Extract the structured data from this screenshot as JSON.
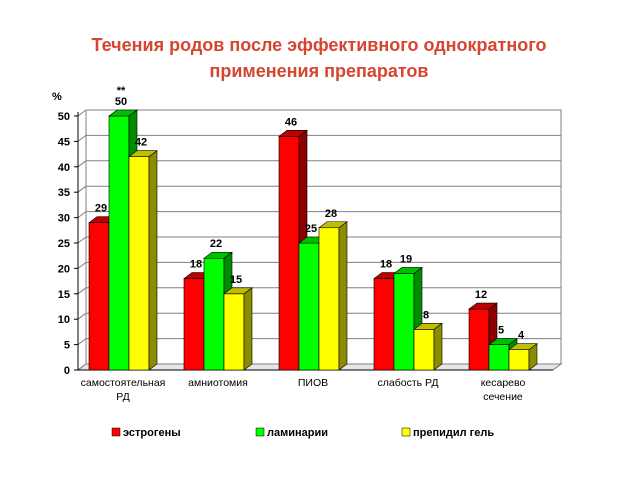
{
  "chart_data": {
    "type": "bar",
    "title_line1": "Течения родов после эффективного однократного",
    "title_line2": "применения препаратов",
    "ylabel": "%",
    "ylim": [
      0,
      50
    ],
    "yticks": [
      "0",
      "5",
      "10",
      "15",
      "20",
      "25",
      "30",
      "35",
      "40",
      "45",
      "50"
    ],
    "grid": true,
    "legend_position": "bottom",
    "categories": [
      [
        "самостоятельная",
        "РД"
      ],
      [
        "амниотомия"
      ],
      [
        "ПИОВ"
      ],
      [
        "слабость РД"
      ],
      [
        "кесарево",
        "сечение"
      ]
    ],
    "series": [
      {
        "name": "эстрогены",
        "color": "#ff0000",
        "values": [
          29,
          18,
          46,
          18,
          12
        ]
      },
      {
        "name": "ламинарии",
        "color": "#00ff00",
        "values": [
          50,
          22,
          25,
          19,
          5
        ]
      },
      {
        "name": "препидил гель",
        "color": "#ffff00",
        "values": [
          42,
          15,
          28,
          8,
          4
        ]
      }
    ],
    "annotation": "**"
  }
}
